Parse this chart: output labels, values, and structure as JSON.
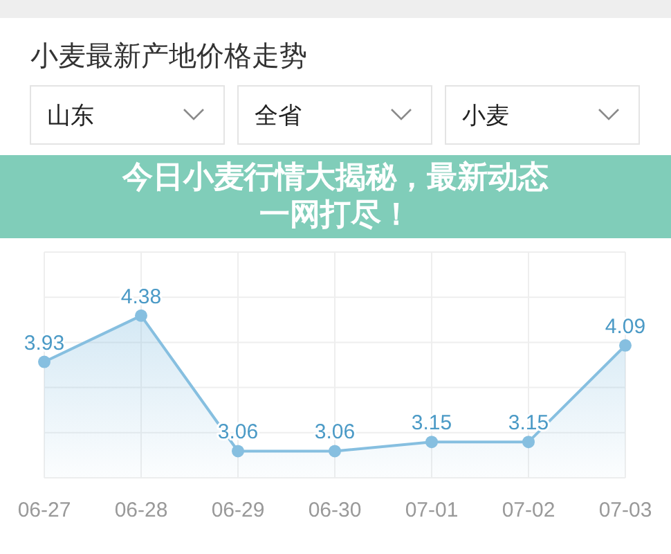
{
  "chart_data": {
    "type": "area",
    "title": "小麦最新产地价格走势",
    "annotations": [
      "山东",
      "全省",
      "小麦",
      "今日小麦行情大揭秘，最新动态一网打尽！"
    ],
    "categories": [
      "06-27",
      "06-28",
      "06-29",
      "06-30",
      "07-01",
      "07-02",
      "07-03"
    ],
    "values": [
      3.93,
      4.38,
      3.06,
      3.06,
      3.15,
      3.15,
      4.09
    ],
    "color": "#86bfe0",
    "marker": "circle",
    "data_labels": true,
    "ylim": [
      2.8,
      5.0
    ],
    "yticks": [
      {
        "value": 2.8,
        "label": null
      },
      {
        "value": 3.24,
        "label": null
      },
      {
        "value": 3.68,
        "label": null
      },
      {
        "value": 4.12,
        "label": null
      },
      {
        "value": 4.56,
        "label": null
      },
      {
        "value": 5.0,
        "label": null
      }
    ],
    "tick_labels": "x",
    "grid": true
  }
}
